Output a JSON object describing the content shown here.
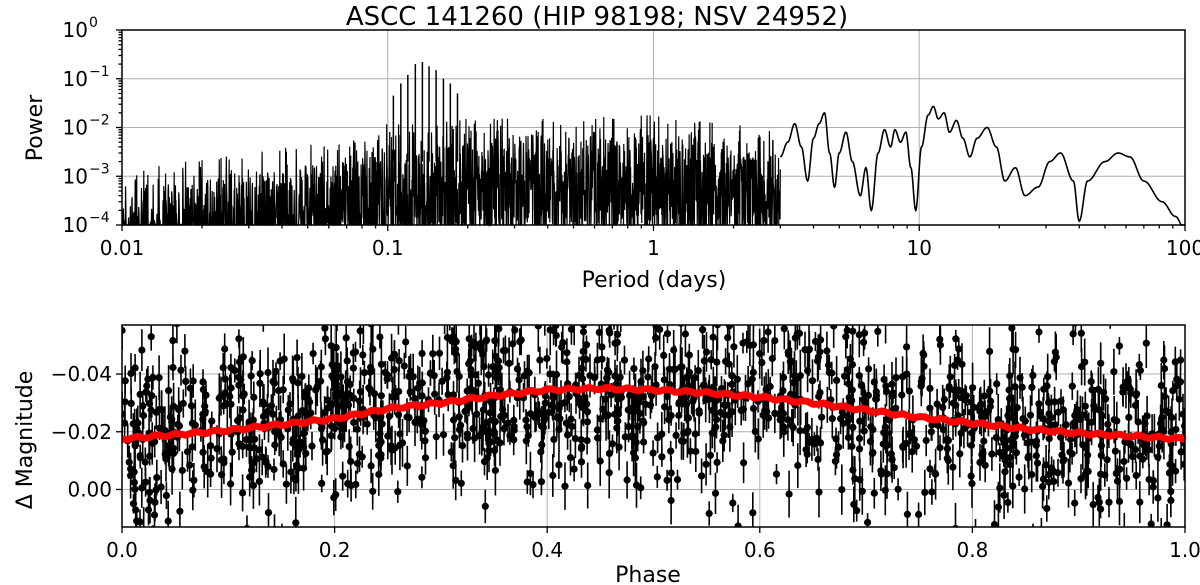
{
  "chart_data": [
    {
      "type": "line",
      "title": "ASCC 141260  (HIP 98198; NSV 24952)",
      "xlabel": "Period (days)",
      "ylabel": "Power",
      "xscale": "log",
      "yscale": "log",
      "xlim": [
        0.01,
        100
      ],
      "ylim": [
        0.0001,
        1
      ],
      "grid": true,
      "color": "#000000",
      "x_ticks": [
        {
          "value": 0.01,
          "label": "0.01"
        },
        {
          "value": 0.1,
          "label": "0.1"
        },
        {
          "value": 1,
          "label": "1"
        },
        {
          "value": 10,
          "label": "10"
        },
        {
          "value": 100,
          "label": "100"
        }
      ],
      "y_ticks": [
        {
          "value": 0.0001,
          "base": "10",
          "exp": "−4"
        },
        {
          "value": 0.001,
          "base": "10",
          "exp": "−3"
        },
        {
          "value": 0.01,
          "base": "10",
          "exp": "−2"
        },
        {
          "value": 0.1,
          "base": "10",
          "exp": "−1"
        },
        {
          "value": 1,
          "base": "10",
          "exp": "0"
        }
      ],
      "peaks": [
        {
          "x": 0.105,
          "y": 0.045
        },
        {
          "x": 0.112,
          "y": 0.08
        },
        {
          "x": 0.119,
          "y": 0.12
        },
        {
          "x": 0.127,
          "y": 0.2
        },
        {
          "x": 0.135,
          "y": 0.22
        },
        {
          "x": 0.143,
          "y": 0.18
        },
        {
          "x": 0.152,
          "y": 0.15
        },
        {
          "x": 0.162,
          "y": 0.1
        },
        {
          "x": 0.172,
          "y": 0.08
        },
        {
          "x": 0.183,
          "y": 0.05
        }
      ],
      "envelope": [
        {
          "x": 0.01,
          "y": 0.0004
        },
        {
          "x": 0.02,
          "y": 0.0008
        },
        {
          "x": 0.05,
          "y": 0.0015
        },
        {
          "x": 0.1,
          "y": 0.004
        },
        {
          "x": 0.2,
          "y": 0.005
        },
        {
          "x": 0.5,
          "y": 0.006
        },
        {
          "x": 1,
          "y": 0.006
        },
        {
          "x": 2,
          "y": 0.004
        },
        {
          "x": 3,
          "y": 0.003
        }
      ],
      "smooth_curve": [
        {
          "x": 3.0,
          "y": 0.0025
        },
        {
          "x": 3.2,
          "y": 0.005
        },
        {
          "x": 3.4,
          "y": 0.012
        },
        {
          "x": 3.6,
          "y": 0.004
        },
        {
          "x": 3.8,
          "y": 0.0008
        },
        {
          "x": 4.0,
          "y": 0.006
        },
        {
          "x": 4.2,
          "y": 0.012
        },
        {
          "x": 4.4,
          "y": 0.02
        },
        {
          "x": 4.6,
          "y": 0.003
        },
        {
          "x": 4.8,
          "y": 0.0006
        },
        {
          "x": 5.0,
          "y": 0.003
        },
        {
          "x": 5.3,
          "y": 0.008
        },
        {
          "x": 5.6,
          "y": 0.002
        },
        {
          "x": 6.0,
          "y": 0.0004
        },
        {
          "x": 6.3,
          "y": 0.0015
        },
        {
          "x": 6.6,
          "y": 0.0002
        },
        {
          "x": 7.0,
          "y": 0.003
        },
        {
          "x": 7.4,
          "y": 0.009
        },
        {
          "x": 7.8,
          "y": 0.004
        },
        {
          "x": 8.1,
          "y": 0.009
        },
        {
          "x": 8.5,
          "y": 0.005
        },
        {
          "x": 8.9,
          "y": 0.008
        },
        {
          "x": 9.3,
          "y": 0.0015
        },
        {
          "x": 9.7,
          "y": 0.0002
        },
        {
          "x": 10.2,
          "y": 0.004
        },
        {
          "x": 10.8,
          "y": 0.018
        },
        {
          "x": 11.3,
          "y": 0.027
        },
        {
          "x": 11.8,
          "y": 0.015
        },
        {
          "x": 12.4,
          "y": 0.02
        },
        {
          "x": 13.0,
          "y": 0.008
        },
        {
          "x": 13.8,
          "y": 0.014
        },
        {
          "x": 14.6,
          "y": 0.006
        },
        {
          "x": 15.5,
          "y": 0.0025
        },
        {
          "x": 16.5,
          "y": 0.006
        },
        {
          "x": 18.0,
          "y": 0.01
        },
        {
          "x": 19.5,
          "y": 0.004
        },
        {
          "x": 21.0,
          "y": 0.0008
        },
        {
          "x": 23.0,
          "y": 0.0015
        },
        {
          "x": 25.0,
          "y": 0.0004
        },
        {
          "x": 28.0,
          "y": 0.0006
        },
        {
          "x": 31.0,
          "y": 0.002
        },
        {
          "x": 34.0,
          "y": 0.003
        },
        {
          "x": 38.0,
          "y": 0.0008
        },
        {
          "x": 40.0,
          "y": 0.00012
        },
        {
          "x": 43.0,
          "y": 0.0008
        },
        {
          "x": 50.0,
          "y": 0.002
        },
        {
          "x": 56.0,
          "y": 0.003
        },
        {
          "x": 62.0,
          "y": 0.0025
        },
        {
          "x": 70.0,
          "y": 0.0008
        },
        {
          "x": 82.0,
          "y": 0.0003
        },
        {
          "x": 92.0,
          "y": 0.00015
        },
        {
          "x": 100.0,
          "y": 8e-05
        }
      ]
    },
    {
      "type": "scatter",
      "xlabel": "Phase",
      "ylabel": "Δ Magnitude",
      "xlim": [
        0.0,
        1.0
      ],
      "ylim": [
        0.013,
        -0.057
      ],
      "y_inverted": true,
      "grid": true,
      "point_color": "#000000",
      "model_color": "#ff0000",
      "x_ticks": [
        {
          "value": 0.0,
          "label": "0.0"
        },
        {
          "value": 0.2,
          "label": "0.2"
        },
        {
          "value": 0.4,
          "label": "0.4"
        },
        {
          "value": 0.6,
          "label": "0.6"
        },
        {
          "value": 0.8,
          "label": "0.8"
        },
        {
          "value": 1.0,
          "label": "1.0"
        }
      ],
      "y_ticks": [
        {
          "value": 0.0,
          "label": "0.00"
        },
        {
          "value": -0.02,
          "label": "−0.02"
        },
        {
          "value": -0.04,
          "label": "−0.04"
        }
      ],
      "model_curve": [
        {
          "x": 0.0,
          "y": -0.0175
        },
        {
          "x": 0.05,
          "y": -0.019
        },
        {
          "x": 0.1,
          "y": -0.0205
        },
        {
          "x": 0.15,
          "y": -0.0225
        },
        {
          "x": 0.2,
          "y": -0.0245
        },
        {
          "x": 0.25,
          "y": -0.028
        },
        {
          "x": 0.3,
          "y": -0.03
        },
        {
          "x": 0.35,
          "y": -0.0325
        },
        {
          "x": 0.4,
          "y": -0.0345
        },
        {
          "x": 0.45,
          "y": -0.035
        },
        {
          "x": 0.5,
          "y": -0.0345
        },
        {
          "x": 0.55,
          "y": -0.0335
        },
        {
          "x": 0.6,
          "y": -0.032
        },
        {
          "x": 0.65,
          "y": -0.03
        },
        {
          "x": 0.7,
          "y": -0.0275
        },
        {
          "x": 0.75,
          "y": -0.025
        },
        {
          "x": 0.8,
          "y": -0.023
        },
        {
          "x": 0.85,
          "y": -0.021
        },
        {
          "x": 0.9,
          "y": -0.0195
        },
        {
          "x": 0.95,
          "y": -0.0185
        },
        {
          "x": 1.0,
          "y": -0.0175
        }
      ],
      "scatter_sigma": 0.015,
      "n_points": 1400
    }
  ]
}
